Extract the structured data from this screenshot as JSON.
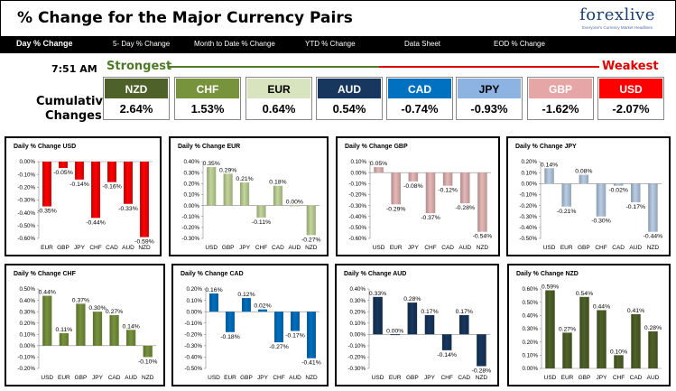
{
  "header": {
    "title": "% Change for the Major Currency Pairs",
    "logo_main": "forexlive",
    "logo_sub": "Everyone's Currency Market Headlines"
  },
  "nav": [
    {
      "label": "Day % Change",
      "active": true
    },
    {
      "label": "5- Day % Change",
      "active": false
    },
    {
      "label": "Month to Date % Change",
      "active": false
    },
    {
      "label": "YTD % Change",
      "active": false
    },
    {
      "label": "Data Sheet",
      "active": false
    },
    {
      "label": "EOD % Change",
      "active": false
    }
  ],
  "summary": {
    "time": "7:51 AM",
    "strongest_label": "Strongest",
    "weakest_label": "Weakest",
    "cumulative_label_1": "Cumulative",
    "cumulative_label_2": "Changes",
    "currencies": [
      {
        "name": "NZD",
        "value": "2.64%",
        "color": "#4e6128",
        "text": "#ffffff"
      },
      {
        "name": "CHF",
        "value": "1.53%",
        "color": "#77933c",
        "text": "#ffffff"
      },
      {
        "name": "EUR",
        "value": "0.64%",
        "color": "#d7e4bd",
        "text": "#000000"
      },
      {
        "name": "AUD",
        "value": "0.54%",
        "color": "#17375e",
        "text": "#ffffff"
      },
      {
        "name": "CAD",
        "value": "-0.74%",
        "color": "#0070c0",
        "text": "#ffffff"
      },
      {
        "name": "JPY",
        "value": "-0.93%",
        "color": "#8db3e2",
        "text": "#000000"
      },
      {
        "name": "GBP",
        "value": "-1.62%",
        "color": "#e6a6a6",
        "text": "#ffffff"
      },
      {
        "name": "USD",
        "value": "-2.07%",
        "color": "#ff0000",
        "text": "#ffffff"
      }
    ],
    "strongest_color": "#4f7a28",
    "weakest_color": "#e00000"
  },
  "chart_data": [
    {
      "type": "bar",
      "title": "Daily % Change USD",
      "color": "#ff0000",
      "categories": [
        "EUR",
        "GBP",
        "JPY",
        "CHF",
        "CAD",
        "AUD",
        "NZD"
      ],
      "values": [
        -0.35,
        -0.05,
        -0.14,
        -0.44,
        -0.16,
        -0.33,
        -0.59
      ],
      "labels": [
        "-0.35%",
        "-0.05%",
        "-0.14%",
        "-0.44%",
        "-0.16%",
        "-0.33%",
        "-0.59%"
      ],
      "ylim": [
        -0.6,
        0.0
      ],
      "ticks": [
        0.0,
        -0.1,
        -0.2,
        -0.3,
        -0.4,
        -0.5,
        -0.6
      ],
      "ticklabels": [
        "0.00%",
        "-0.10%",
        "-0.20%",
        "-0.30%",
        "-0.40%",
        "-0.50%",
        "-0.60%"
      ]
    },
    {
      "type": "bar",
      "title": "Daily % Change EUR",
      "color": "#c3d69b",
      "categories": [
        "USD",
        "GBP",
        "JPY",
        "CHF",
        "CAD",
        "AUD",
        "NZD"
      ],
      "values": [
        0.35,
        0.29,
        0.21,
        -0.11,
        0.18,
        0.0,
        -0.27
      ],
      "labels": [
        "0.35%",
        "0.29%",
        "0.21%",
        "-0.11%",
        "0.18%",
        "0.00%",
        "-0.27%"
      ],
      "ylim": [
        -0.3,
        0.4
      ],
      "ticks": [
        0.4,
        0.3,
        0.2,
        0.1,
        0.0,
        -0.1,
        -0.2,
        -0.3
      ],
      "ticklabels": [
        "0.40%",
        "0.30%",
        "0.20%",
        "0.10%",
        "0.00%",
        "-0.10%",
        "-0.20%",
        "-0.30%"
      ]
    },
    {
      "type": "bar",
      "title": "Daily % Change GBP",
      "color": "#e6b9b8",
      "categories": [
        "USD",
        "EUR",
        "JPY",
        "CHF",
        "CAD",
        "AUD",
        "NZD"
      ],
      "values": [
        0.05,
        -0.29,
        -0.08,
        -0.37,
        -0.12,
        -0.28,
        -0.54
      ],
      "labels": [
        "0.05%",
        "-0.29%",
        "-0.08%",
        "-0.37%",
        "-0.12%",
        "-0.28%",
        "-0.54%"
      ],
      "ylim": [
        -0.6,
        0.1
      ],
      "ticks": [
        0.1,
        0.0,
        -0.1,
        -0.2,
        -0.3,
        -0.4,
        -0.5,
        -0.6
      ],
      "ticklabels": [
        "0.10%",
        "0.00%",
        "-0.10%",
        "-0.20%",
        "-0.30%",
        "-0.40%",
        "-0.50%",
        "-0.60%"
      ]
    },
    {
      "type": "bar",
      "title": "Daily % Change JPY",
      "color": "#b9cde5",
      "categories": [
        "USD",
        "EUR",
        "GBP",
        "CHF",
        "CAD",
        "AUD",
        "NZD"
      ],
      "values": [
        0.14,
        -0.21,
        0.08,
        -0.3,
        -0.02,
        -0.17,
        -0.44
      ],
      "labels": [
        "0.14%",
        "-0.21%",
        "0.08%",
        "-0.30%",
        "-0.02%",
        "-0.17%",
        "-0.44%"
      ],
      "ylim": [
        -0.5,
        0.2
      ],
      "ticks": [
        0.2,
        0.1,
        0.0,
        -0.1,
        -0.2,
        -0.3,
        -0.4,
        -0.5
      ],
      "ticklabels": [
        "0.20%",
        "0.10%",
        "0.00%",
        "-0.10%",
        "-0.20%",
        "-0.30%",
        "-0.40%",
        "-0.50%"
      ]
    },
    {
      "type": "bar",
      "title": "Daily % Change CHF",
      "color": "#77933c",
      "categories": [
        "USD",
        "EUR",
        "GBP",
        "JPY",
        "CAD",
        "AUD",
        "NZD"
      ],
      "values": [
        0.44,
        0.11,
        0.37,
        0.3,
        0.27,
        0.14,
        -0.1
      ],
      "labels": [
        "0.44%",
        "0.11%",
        "0.37%",
        "0.30%",
        "0.27%",
        "0.14%",
        "-0.10%"
      ],
      "ylim": [
        -0.2,
        0.5
      ],
      "ticks": [
        0.5,
        0.4,
        0.3,
        0.2,
        0.1,
        0.0,
        -0.1,
        -0.2
      ],
      "ticklabels": [
        "0.50%",
        "0.40%",
        "0.30%",
        "0.20%",
        "0.10%",
        "0.00%",
        "-0.10%",
        "-0.20%"
      ]
    },
    {
      "type": "bar",
      "title": "Daily % Change CAD",
      "color": "#0070c0",
      "categories": [
        "USD",
        "EUR",
        "GBP",
        "JPY",
        "CHF",
        "AUD",
        "NZD"
      ],
      "values": [
        0.16,
        -0.18,
        0.12,
        0.02,
        -0.27,
        -0.17,
        -0.41
      ],
      "labels": [
        "0.16%",
        "-0.18%",
        "0.12%",
        "0.02%",
        "-0.27%",
        "-0.17%",
        "-0.41%"
      ],
      "ylim": [
        -0.5,
        0.2
      ],
      "ticks": [
        0.2,
        0.1,
        0.0,
        -0.1,
        -0.2,
        -0.3,
        -0.4,
        -0.5
      ],
      "ticklabels": [
        "0.20%",
        "0.10%",
        "0.00%",
        "-0.10%",
        "-0.20%",
        "-0.30%",
        "-0.40%",
        "-0.50%"
      ]
    },
    {
      "type": "bar",
      "title": "Daily % Change AUD",
      "color": "#17375e",
      "categories": [
        "USD",
        "EUR",
        "GBP",
        "JPY",
        "CHF",
        "CAD",
        "NZD"
      ],
      "values": [
        0.33,
        0.0,
        0.28,
        0.17,
        -0.14,
        0.17,
        -0.28
      ],
      "labels": [
        "0.33%",
        "0.00%",
        "0.28%",
        "0.17%",
        "-0.14%",
        "0.17%",
        "-0.28%"
      ],
      "ylim": [
        -0.3,
        0.4
      ],
      "ticks": [
        0.4,
        0.3,
        0.2,
        0.1,
        0.0,
        -0.1,
        -0.2,
        -0.3
      ],
      "ticklabels": [
        "0.40%",
        "0.30%",
        "0.20%",
        "0.10%",
        "0.00%",
        "-0.10%",
        "-0.20%",
        "-0.30%"
      ]
    },
    {
      "type": "bar",
      "title": "Daily % Change NZD",
      "color": "#4f6228",
      "categories": [
        "USD",
        "EUR",
        "GBP",
        "JPY",
        "CHF",
        "CAD",
        "AUD"
      ],
      "values": [
        0.59,
        0.27,
        0.54,
        0.44,
        0.1,
        0.41,
        0.28
      ],
      "labels": [
        "0.59%",
        "0.27%",
        "0.54%",
        "0.44%",
        "0.10%",
        "0.41%",
        "0.28%"
      ],
      "ylim": [
        0.0,
        0.6
      ],
      "ticks": [
        0.6,
        0.5,
        0.4,
        0.3,
        0.2,
        0.1,
        0.0
      ],
      "ticklabels": [
        "0.60%",
        "0.50%",
        "0.40%",
        "0.30%",
        "0.20%",
        "0.10%",
        "0.00%"
      ]
    }
  ]
}
